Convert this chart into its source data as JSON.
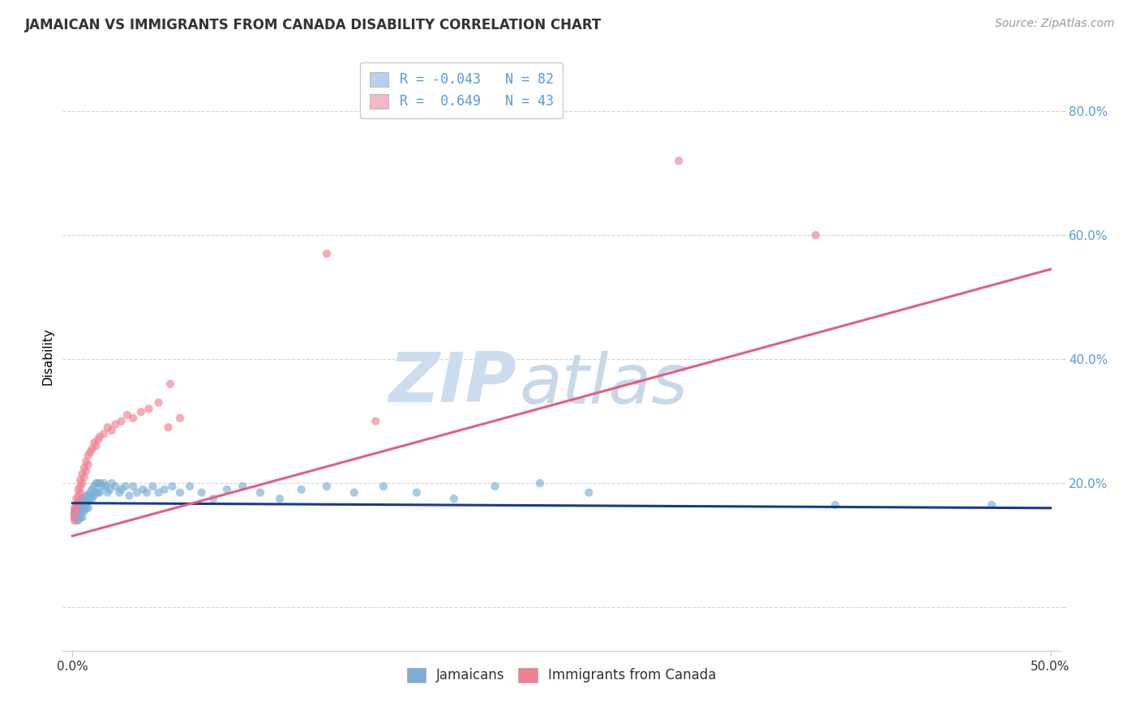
{
  "title": "JAMAICAN VS IMMIGRANTS FROM CANADA DISABILITY CORRELATION CHART",
  "source": "Source: ZipAtlas.com",
  "ylabel": "Disability",
  "xlim": [
    -0.005,
    0.505
  ],
  "ylim": [
    -0.07,
    0.88
  ],
  "yticks": [
    0.0,
    0.2,
    0.4,
    0.6,
    0.8
  ],
  "ytick_labels": [
    "",
    "20.0%",
    "40.0%",
    "60.0%",
    "80.0%"
  ],
  "xticks": [
    0.0,
    0.5
  ],
  "xtick_labels": [
    "0.0%",
    "50.0%"
  ],
  "legend_label_blue": "R = -0.043   N = 82",
  "legend_label_pink": "R =  0.649   N = 43",
  "legend_color_blue": "#b8d0f0",
  "legend_color_pink": "#f4b8c8",
  "jamaicans_color": "#7bafd4",
  "canada_color": "#f08090",
  "trendline_jamaicans_color": "#1a3a8a",
  "trendline_canada_color": "#e06080",
  "watermark_zip": "ZIP",
  "watermark_atlas": "atlas",
  "watermark_color_zip": "#ccddf0",
  "watermark_color_atlas": "#c8d8e8",
  "background_color": "#ffffff",
  "grid_color": "#cccccc",
  "jamaicans_x": [
    0.001,
    0.001,
    0.001,
    0.002,
    0.002,
    0.002,
    0.002,
    0.002,
    0.003,
    0.003,
    0.003,
    0.003,
    0.003,
    0.003,
    0.004,
    0.004,
    0.004,
    0.004,
    0.005,
    0.005,
    0.005,
    0.005,
    0.005,
    0.006,
    0.006,
    0.006,
    0.007,
    0.007,
    0.007,
    0.008,
    0.008,
    0.008,
    0.009,
    0.009,
    0.01,
    0.01,
    0.011,
    0.011,
    0.012,
    0.012,
    0.013,
    0.013,
    0.014,
    0.014,
    0.015,
    0.016,
    0.017,
    0.018,
    0.019,
    0.02,
    0.022,
    0.024,
    0.025,
    0.027,
    0.029,
    0.031,
    0.033,
    0.036,
    0.038,
    0.041,
    0.044,
    0.047,
    0.051,
    0.055,
    0.06,
    0.066,
    0.072,
    0.079,
    0.087,
    0.096,
    0.106,
    0.117,
    0.13,
    0.144,
    0.159,
    0.176,
    0.195,
    0.216,
    0.239,
    0.264,
    0.39,
    0.47
  ],
  "jamaicans_y": [
    0.155,
    0.15,
    0.145,
    0.16,
    0.155,
    0.15,
    0.145,
    0.14,
    0.165,
    0.16,
    0.155,
    0.15,
    0.145,
    0.14,
    0.17,
    0.165,
    0.155,
    0.145,
    0.175,
    0.17,
    0.165,
    0.155,
    0.145,
    0.175,
    0.165,
    0.155,
    0.18,
    0.17,
    0.16,
    0.18,
    0.17,
    0.16,
    0.185,
    0.175,
    0.19,
    0.175,
    0.195,
    0.18,
    0.2,
    0.185,
    0.2,
    0.185,
    0.2,
    0.185,
    0.195,
    0.2,
    0.195,
    0.185,
    0.19,
    0.2,
    0.195,
    0.185,
    0.19,
    0.195,
    0.18,
    0.195,
    0.185,
    0.19,
    0.185,
    0.195,
    0.185,
    0.19,
    0.195,
    0.185,
    0.195,
    0.185,
    0.175,
    0.19,
    0.195,
    0.185,
    0.175,
    0.19,
    0.195,
    0.185,
    0.195,
    0.185,
    0.175,
    0.195,
    0.2,
    0.185,
    0.165,
    0.165
  ],
  "canada_x": [
    0.001,
    0.001,
    0.001,
    0.002,
    0.002,
    0.002,
    0.003,
    0.003,
    0.003,
    0.004,
    0.004,
    0.004,
    0.005,
    0.005,
    0.006,
    0.006,
    0.007,
    0.007,
    0.008,
    0.008,
    0.009,
    0.01,
    0.011,
    0.012,
    0.013,
    0.014,
    0.016,
    0.018,
    0.02,
    0.022,
    0.025,
    0.028,
    0.031,
    0.035,
    0.039,
    0.044,
    0.049,
    0.055,
    0.13,
    0.155,
    0.31,
    0.38,
    0.05
  ],
  "canada_y": [
    0.14,
    0.15,
    0.16,
    0.155,
    0.165,
    0.175,
    0.17,
    0.18,
    0.19,
    0.185,
    0.195,
    0.205,
    0.2,
    0.215,
    0.21,
    0.225,
    0.22,
    0.235,
    0.23,
    0.245,
    0.25,
    0.255,
    0.265,
    0.26,
    0.27,
    0.275,
    0.28,
    0.29,
    0.285,
    0.295,
    0.3,
    0.31,
    0.305,
    0.315,
    0.32,
    0.33,
    0.29,
    0.305,
    0.57,
    0.3,
    0.72,
    0.6,
    0.36
  ],
  "trendline_canada_x0": 0.0,
  "trendline_canada_y0": 0.115,
  "trendline_canada_x1": 0.5,
  "trendline_canada_y1": 0.545,
  "trendline_jamaicans_x0": 0.0,
  "trendline_jamaicans_y0": 0.168,
  "trendline_jamaicans_x1": 0.5,
  "trendline_jamaicans_y1": 0.16
}
